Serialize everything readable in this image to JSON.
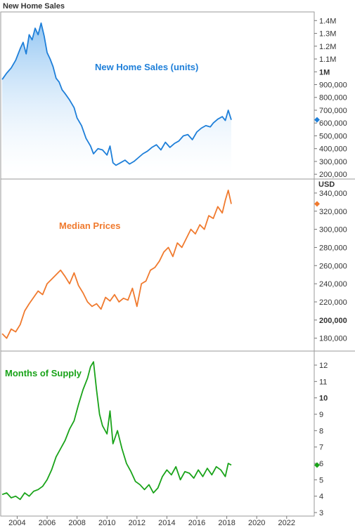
{
  "title": "New Home Sales",
  "colors": {
    "sales": "#1e7fd9",
    "prices": "#f07a2e",
    "supply": "#19a319",
    "frame": "#9a9a9a"
  },
  "x_axis": {
    "ticks": [
      "2004",
      "2006",
      "2008",
      "2010",
      "2012",
      "2014",
      "2016",
      "2018",
      "2020",
      "2022"
    ],
    "range": [
      2002.9,
      2023.7
    ]
  },
  "chart_data": [
    {
      "type": "area",
      "name": "New Home Sales (units)",
      "annotation": "New Home Sales (units)",
      "ylim": [
        190000,
        1440000
      ],
      "y_ticks": [
        "1.4M",
        "1.3M",
        "1.2M",
        "1.1M",
        "1M",
        "900,000",
        "800,000",
        "700,000",
        "600,000",
        "500,000",
        "400,000",
        "300,000",
        "200,000"
      ],
      "y_tick_values": [
        1400000,
        1300000,
        1200000,
        1100000,
        1000000,
        900000,
        800000,
        700000,
        600000,
        500000,
        400000,
        300000,
        200000
      ],
      "bold_tick": "1M",
      "last_value": 625000,
      "x": [
        2003.0,
        2003.3,
        2003.6,
        2003.9,
        2004.2,
        2004.4,
        2004.6,
        2004.8,
        2005.0,
        2005.2,
        2005.4,
        2005.6,
        2005.8,
        2006.0,
        2006.2,
        2006.4,
        2006.6,
        2006.8,
        2007.0,
        2007.2,
        2007.5,
        2007.8,
        2008.0,
        2008.3,
        2008.6,
        2008.9,
        2009.1,
        2009.4,
        2009.7,
        2010.0,
        2010.2,
        2010.4,
        2010.6,
        2010.9,
        2011.2,
        2011.5,
        2011.8,
        2012.1,
        2012.4,
        2012.7,
        2013.0,
        2013.3,
        2013.6,
        2013.9,
        2014.2,
        2014.5,
        2014.8,
        2015.1,
        2015.4,
        2015.7,
        2016.0,
        2016.3,
        2016.6,
        2016.9,
        2017.1,
        2017.4,
        2017.7,
        2017.9,
        2018.1,
        2018.3
      ],
      "values": [
        940000,
        990000,
        1030000,
        1090000,
        1180000,
        1230000,
        1140000,
        1290000,
        1250000,
        1340000,
        1290000,
        1380000,
        1280000,
        1150000,
        1100000,
        1040000,
        950000,
        920000,
        860000,
        830000,
        780000,
        720000,
        640000,
        580000,
        480000,
        420000,
        360000,
        400000,
        390000,
        350000,
        420000,
        290000,
        270000,
        290000,
        310000,
        280000,
        300000,
        330000,
        360000,
        380000,
        410000,
        430000,
        390000,
        450000,
        410000,
        440000,
        460000,
        500000,
        510000,
        470000,
        530000,
        560000,
        580000,
        570000,
        600000,
        630000,
        650000,
        620000,
        700000,
        625000
      ]
    },
    {
      "type": "line",
      "name": "Median Prices",
      "annotation": "Median Prices",
      "unit_label": "USD",
      "ylim": [
        172000,
        350000
      ],
      "y_ticks": [
        "340,000",
        "320,000",
        "300,000",
        "280,000",
        "260,000",
        "240,000",
        "220,000",
        "200,000",
        "180,000"
      ],
      "y_tick_values": [
        340000,
        320000,
        300000,
        280000,
        260000,
        240000,
        220000,
        200000,
        180000
      ],
      "bold_tick": "200,000",
      "last_value": 328000,
      "x": [
        2003.0,
        2003.3,
        2003.6,
        2003.9,
        2004.2,
        2004.5,
        2004.8,
        2005.1,
        2005.4,
        2005.7,
        2006.0,
        2006.3,
        2006.6,
        2006.9,
        2007.2,
        2007.5,
        2007.8,
        2008.1,
        2008.4,
        2008.7,
        2009.0,
        2009.3,
        2009.6,
        2009.9,
        2010.2,
        2010.5,
        2010.8,
        2011.1,
        2011.4,
        2011.7,
        2012.0,
        2012.3,
        2012.6,
        2012.9,
        2013.2,
        2013.5,
        2013.8,
        2014.1,
        2014.4,
        2014.7,
        2015.0,
        2015.3,
        2015.6,
        2015.9,
        2016.2,
        2016.5,
        2016.8,
        2017.1,
        2017.4,
        2017.7,
        2017.9,
        2018.1,
        2018.3
      ],
      "values": [
        185000,
        180000,
        190000,
        187000,
        195000,
        210000,
        218000,
        225000,
        232000,
        228000,
        240000,
        245000,
        250000,
        255000,
        248000,
        240000,
        252000,
        238000,
        230000,
        220000,
        215000,
        218000,
        212000,
        225000,
        221000,
        228000,
        220000,
        224000,
        222000,
        235000,
        215000,
        240000,
        243000,
        255000,
        258000,
        265000,
        275000,
        280000,
        270000,
        285000,
        280000,
        290000,
        300000,
        295000,
        305000,
        300000,
        315000,
        312000,
        325000,
        318000,
        332000,
        343000,
        328000
      ]
    },
    {
      "type": "line",
      "name": "Months of Supply",
      "annotation": "Months of Supply",
      "ylim": [
        3.0,
        12.6
      ],
      "y_ticks": [
        "12",
        "11",
        "10",
        "9",
        "8",
        "7",
        "6",
        "5",
        "4",
        "3"
      ],
      "y_tick_values": [
        12,
        11,
        10,
        9,
        8,
        7,
        6,
        5,
        4,
        3
      ],
      "bold_tick": "10",
      "last_value": 5.9,
      "x": [
        2003.0,
        2003.3,
        2003.6,
        2003.9,
        2004.2,
        2004.5,
        2004.8,
        2005.1,
        2005.4,
        2005.7,
        2006.0,
        2006.3,
        2006.6,
        2006.9,
        2007.2,
        2007.5,
        2007.8,
        2008.1,
        2008.4,
        2008.7,
        2008.9,
        2009.1,
        2009.3,
        2009.5,
        2009.7,
        2010.0,
        2010.2,
        2010.4,
        2010.7,
        2011.0,
        2011.3,
        2011.6,
        2011.9,
        2012.2,
        2012.5,
        2012.8,
        2013.1,
        2013.4,
        2013.7,
        2014.0,
        2014.3,
        2014.6,
        2014.9,
        2015.2,
        2015.5,
        2015.8,
        2016.1,
        2016.4,
        2016.7,
        2017.0,
        2017.3,
        2017.6,
        2017.9,
        2018.1,
        2018.3
      ],
      "values": [
        4.1,
        4.2,
        3.9,
        4.0,
        3.8,
        4.2,
        4.0,
        4.3,
        4.4,
        4.6,
        5.0,
        5.6,
        6.4,
        6.9,
        7.4,
        8.1,
        8.6,
        9.6,
        10.5,
        11.2,
        11.9,
        12.2,
        10.5,
        9.0,
        8.3,
        7.8,
        9.2,
        7.2,
        8.0,
        6.9,
        6.0,
        5.5,
        4.9,
        4.7,
        4.4,
        4.7,
        4.2,
        4.5,
        5.2,
        5.6,
        5.3,
        5.8,
        5.0,
        5.5,
        5.4,
        5.1,
        5.6,
        5.2,
        5.7,
        5.3,
        5.8,
        5.6,
        5.2,
        6.0,
        5.9
      ]
    }
  ]
}
